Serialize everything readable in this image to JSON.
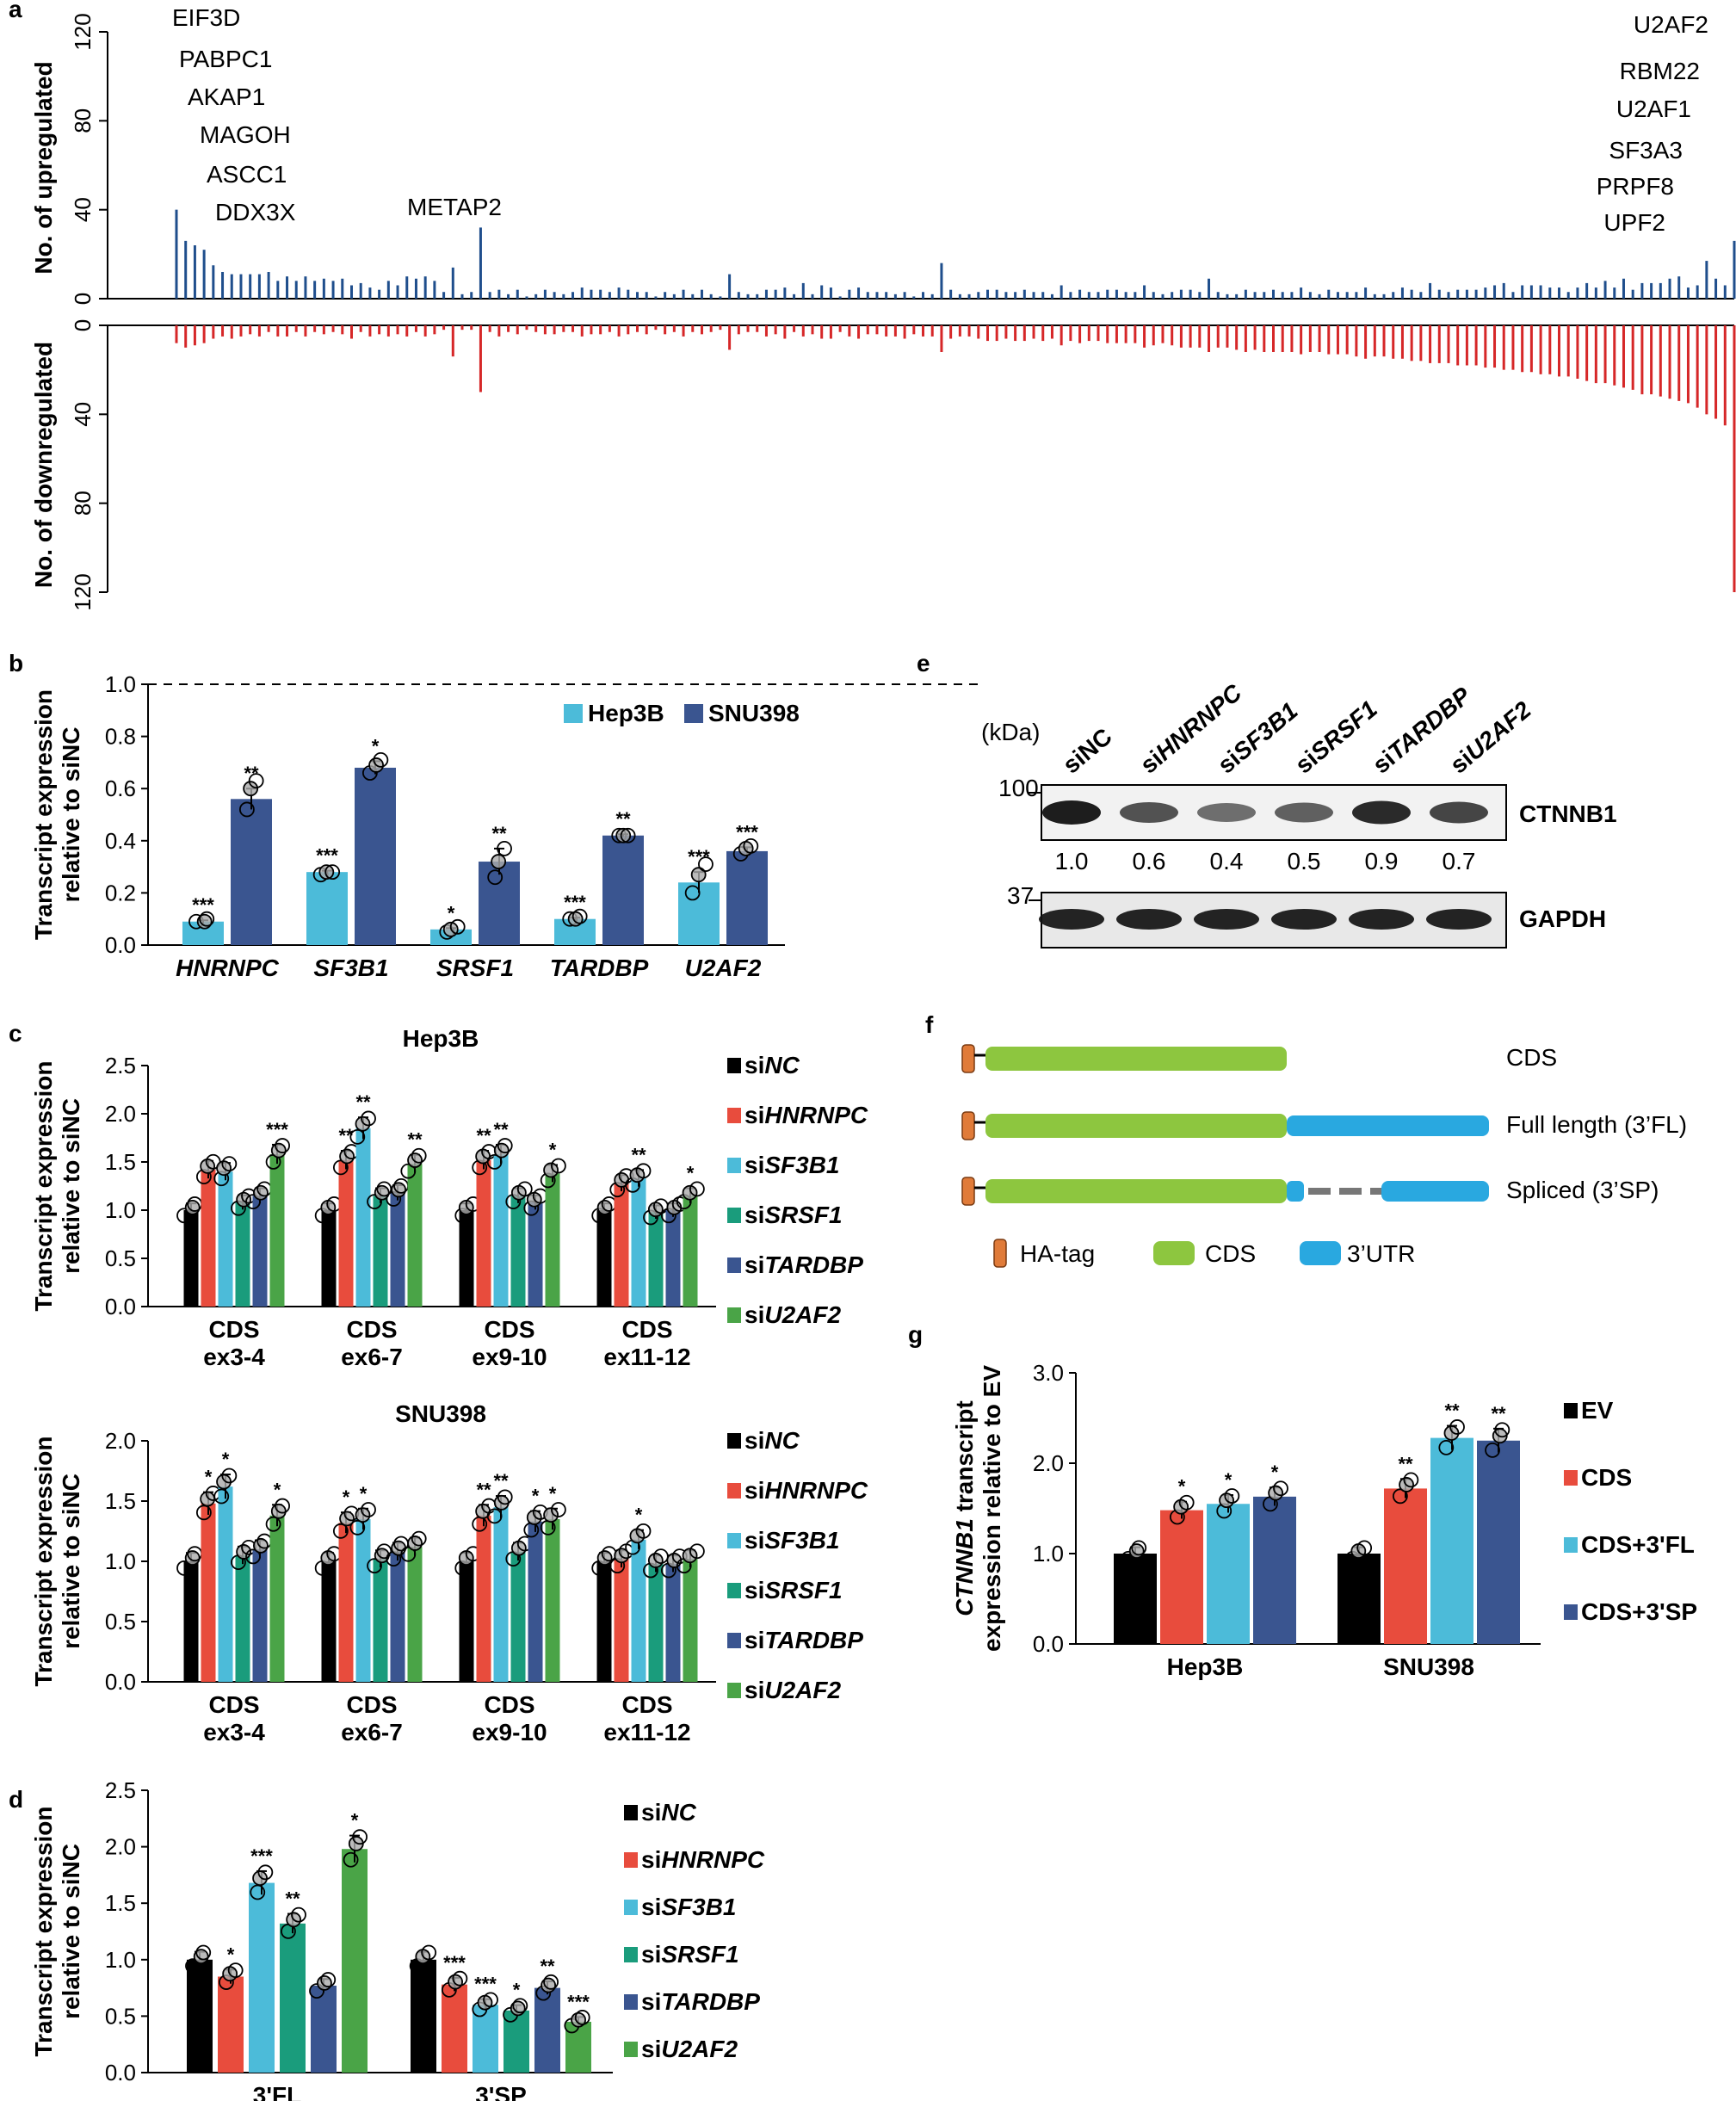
{
  "panel_letters": {
    "a": "a",
    "b": "b",
    "c": "c",
    "d": "d",
    "e": "e",
    "f": "f",
    "g": "g"
  },
  "colors": {
    "up": "#1f4e8c",
    "down": "#d62728",
    "Hep3B": "#4cbbd9",
    "SNU398": "#3a5590",
    "siNC": "#000000",
    "siHNRNPC": "#e84c3d",
    "siSF3B1": "#4cbbd9",
    "siSRSF1": "#1a9c7c",
    "siTARDBP": "#3a5590",
    "siU2AF2": "#4aa447",
    "EV": "#000000",
    "CDS": "#e84c3d",
    "CDS+3'FL": "#4cbbd9",
    "CDS+3'SP": "#3a5590",
    "HA": "#e07b39",
    "CDSbox": "#8dc63f",
    "UTR": "#29a8e0"
  },
  "chart_data": [
    {
      "id": "a",
      "type": "bar",
      "ylabel_up": "No. of upregulated",
      "ylabel_down": "No. of downregulated",
      "ylim": [
        0,
        120
      ],
      "yticks": [
        "0",
        "40",
        "80",
        "120"
      ],
      "n_bars": 170,
      "up_values": [
        40,
        26,
        24,
        22,
        15,
        12,
        11,
        11,
        11,
        11,
        12,
        8,
        10,
        8,
        10,
        8,
        9,
        8,
        9,
        6,
        7,
        5,
        4,
        8,
        6,
        10,
        9,
        10,
        8,
        3,
        14,
        2,
        3,
        32,
        3,
        4,
        2,
        4,
        1,
        2,
        4,
        3,
        2,
        3,
        5,
        4,
        4,
        3,
        5,
        4,
        3,
        3,
        1,
        3,
        2,
        4,
        2,
        4,
        2,
        1,
        11,
        3,
        2,
        2,
        4,
        4,
        5,
        2,
        7,
        2,
        6,
        5,
        1,
        4,
        5,
        3,
        3,
        3,
        2,
        3,
        1,
        3,
        2,
        16,
        4,
        2,
        2,
        3,
        4,
        4,
        3,
        3,
        4,
        3,
        3,
        2,
        6,
        3,
        4,
        3,
        3,
        4,
        4,
        3,
        3,
        6,
        3,
        2,
        3,
        4,
        4,
        3,
        9,
        3,
        2,
        2,
        4,
        3,
        3,
        4,
        3,
        3,
        5,
        3,
        2,
        4,
        3,
        3,
        3,
        5,
        2,
        2,
        3,
        5,
        4,
        3,
        7,
        4,
        3,
        4,
        4,
        4,
        5,
        6,
        7,
        3,
        6,
        6,
        6,
        5,
        5,
        3,
        5,
        7,
        5,
        8,
        5,
        9,
        4,
        7,
        7,
        7,
        9,
        10,
        5,
        6,
        17,
        9,
        6,
        26
      ],
      "down_values": [
        8,
        10,
        9,
        8,
        6,
        5,
        6,
        5,
        4,
        5,
        3,
        5,
        5,
        3,
        5,
        3,
        4,
        3,
        4,
        6,
        3,
        5,
        4,
        5,
        4,
        5,
        3,
        5,
        4,
        2,
        14,
        2,
        2,
        30,
        3,
        5,
        3,
        4,
        2,
        3,
        4,
        4,
        3,
        3,
        5,
        4,
        4,
        3,
        5,
        4,
        3,
        4,
        2,
        4,
        3,
        5,
        3,
        4,
        3,
        2,
        11,
        4,
        3,
        3,
        5,
        4,
        6,
        3,
        5,
        4,
        6,
        6,
        3,
        5,
        6,
        4,
        4,
        5,
        5,
        6,
        4,
        5,
        5,
        12,
        6,
        5,
        5,
        6,
        7,
        7,
        6,
        7,
        7,
        6,
        7,
        6,
        9,
        7,
        8,
        7,
        7,
        8,
        8,
        8,
        8,
        10,
        9,
        8,
        9,
        10,
        10,
        10,
        12,
        10,
        10,
        11,
        12,
        11,
        12,
        12,
        12,
        12,
        13,
        12,
        12,
        13,
        13,
        13,
        14,
        15,
        14,
        14,
        15,
        15,
        16,
        16,
        17,
        17,
        17,
        18,
        18,
        18,
        19,
        19,
        20,
        20,
        21,
        21,
        22,
        22,
        23,
        23,
        24,
        25,
        26,
        26,
        27,
        28,
        29,
        31,
        31,
        32,
        33,
        34,
        35,
        37,
        40,
        42,
        45,
        120
      ],
      "labels_left": [
        "EIF3D",
        "PABPC1",
        "AKAP1",
        "MAGOH",
        "ASCC1",
        "DDX3X"
      ],
      "label_mid": "METAP2",
      "labels_right": [
        "U2AF2",
        "RBM22",
        "U2AF1",
        "SF3A3",
        "PRPF8",
        "UPF2"
      ]
    },
    {
      "id": "b",
      "type": "bar",
      "ylabel": [
        "Transcript expression",
        "relative to siNC"
      ],
      "ylim": [
        0,
        1.0
      ],
      "yticks": [
        "0.0",
        "0.2",
        "0.4",
        "0.6",
        "0.8",
        "1.0"
      ],
      "categories": [
        "HNRNPC",
        "SF3B1",
        "SRSF1",
        "TARDBP",
        "U2AF2"
      ],
      "series": [
        {
          "name": "Hep3B",
          "values": [
            0.09,
            0.28,
            0.06,
            0.1,
            0.24
          ],
          "err": [
            0.005,
            0.005,
            0.005,
            0.005,
            0.04
          ],
          "sig": [
            "***",
            "***",
            "*",
            "***",
            "***"
          ],
          "pts": [
            [
              0.09,
              0.09,
              0.1
            ],
            [
              0.27,
              0.28,
              0.28
            ],
            [
              0.05,
              0.06,
              0.07
            ],
            [
              0.1,
              0.1,
              0.11
            ],
            [
              0.2,
              0.27,
              0.31
            ]
          ]
        },
        {
          "name": "SNU398",
          "values": [
            0.56,
            0.68,
            0.32,
            0.42,
            0.36
          ],
          "err": [
            0.04,
            0.025,
            0.05,
            0.005,
            0.015
          ],
          "sig": [
            "**",
            "*",
            "**",
            "**",
            "***"
          ],
          "pts": [
            [
              0.52,
              0.6,
              0.63
            ],
            [
              0.66,
              0.69,
              0.71
            ],
            [
              0.26,
              0.32,
              0.37
            ],
            [
              0.42,
              0.42,
              0.42
            ],
            [
              0.35,
              0.37,
              0.38
            ]
          ]
        }
      ]
    },
    {
      "id": "c1",
      "type": "bar",
      "title": "Hep3B",
      "ylabel": [
        "Transcript expression",
        "relative to siNC"
      ],
      "ylim": [
        0,
        2.5
      ],
      "yticks": [
        "0.0",
        "0.5",
        "1.0",
        "1.5",
        "2.0",
        "2.5"
      ],
      "categories": [
        [
          "CDS",
          "ex3-4"
        ],
        [
          "CDS",
          "ex6-7"
        ],
        [
          "CDS",
          "ex9-10"
        ],
        [
          "CDS",
          "ex11-12"
        ]
      ],
      "series": [
        {
          "name": "siNC",
          "values": [
            1.0,
            1.0,
            1.0,
            1.0
          ],
          "sig": [
            "",
            "",
            "",
            ""
          ]
        },
        {
          "name": "siHNRNPC",
          "values": [
            1.42,
            1.52,
            1.52,
            1.28
          ],
          "sig": [
            "",
            "**",
            "**",
            ""
          ]
        },
        {
          "name": "siSF3B1",
          "values": [
            1.4,
            1.85,
            1.58,
            1.33
          ],
          "sig": [
            "",
            "**",
            "**",
            "**"
          ]
        },
        {
          "name": "siSRSF1",
          "values": [
            1.08,
            1.15,
            1.15,
            0.98
          ],
          "sig": [
            "",
            "",
            "",
            ""
          ]
        },
        {
          "name": "siTARDBP",
          "values": [
            1.15,
            1.18,
            1.08,
            1.0
          ],
          "sig": [
            "",
            "",
            "",
            ""
          ]
        },
        {
          "name": "siU2AF2",
          "values": [
            1.58,
            1.48,
            1.38,
            1.15
          ],
          "sig": [
            "***",
            "**",
            "*",
            "*"
          ]
        }
      ]
    },
    {
      "id": "c2",
      "type": "bar",
      "title": "SNU398",
      "ylabel": [
        "Transcript expression",
        "relative to siNC"
      ],
      "ylim": [
        0,
        2.0
      ],
      "yticks": [
        "0.0",
        "0.5",
        "1.0",
        "1.5",
        "2.0"
      ],
      "categories": [
        [
          "CDS",
          "ex3-4"
        ],
        [
          "CDS",
          "ex6-7"
        ],
        [
          "CDS",
          "ex9-10"
        ],
        [
          "CDS",
          "ex11-12"
        ]
      ],
      "series": [
        {
          "name": "siNC",
          "values": [
            1.0,
            1.0,
            1.0,
            1.0
          ],
          "sig": [
            "",
            "",
            "",
            ""
          ]
        },
        {
          "name": "siHNRNPC",
          "values": [
            1.48,
            1.32,
            1.38,
            1.02
          ],
          "sig": [
            "*",
            "*",
            "**",
            ""
          ]
        },
        {
          "name": "siSF3B1",
          "values": [
            1.62,
            1.35,
            1.45,
            1.18
          ],
          "sig": [
            "*",
            "*",
            "**",
            "*"
          ]
        },
        {
          "name": "siSRSF1",
          "values": [
            1.05,
            1.02,
            1.08,
            0.98
          ],
          "sig": [
            "",
            "",
            "",
            ""
          ]
        },
        {
          "name": "siTARDBP",
          "values": [
            1.1,
            1.08,
            1.33,
            0.98
          ],
          "sig": [
            "",
            "",
            "*",
            ""
          ]
        },
        {
          "name": "siU2AF2",
          "values": [
            1.38,
            1.12,
            1.35,
            1.02
          ],
          "sig": [
            "*",
            "",
            "*",
            ""
          ]
        }
      ]
    },
    {
      "id": "d",
      "type": "bar",
      "ylabel": [
        "Transcript expression",
        "relative to siNC"
      ],
      "ylim": [
        0,
        2.5
      ],
      "yticks": [
        "0.0",
        "0.5",
        "1.0",
        "1.5",
        "2.0",
        "2.5"
      ],
      "categories": [
        [
          "3'FL"
        ],
        [
          "3'SP"
        ]
      ],
      "series": [
        {
          "name": "siNC",
          "values": [
            1.0,
            1.0
          ],
          "sig": [
            "",
            ""
          ]
        },
        {
          "name": "siHNRNPC",
          "values": [
            0.85,
            0.78
          ],
          "sig": [
            "*",
            "***"
          ]
        },
        {
          "name": "siSF3B1",
          "values": [
            1.68,
            0.6
          ],
          "sig": [
            "***",
            "***"
          ]
        },
        {
          "name": "siSRSF1",
          "values": [
            1.32,
            0.55
          ],
          "sig": [
            "**",
            "*"
          ]
        },
        {
          "name": "siTARDBP",
          "values": [
            0.77,
            0.75
          ],
          "sig": [
            "",
            "**"
          ]
        },
        {
          "name": "siU2AF2",
          "values": [
            1.98,
            0.45
          ],
          "sig": [
            "*",
            "***"
          ]
        }
      ]
    },
    {
      "id": "g",
      "type": "bar",
      "ylabel": [
        "CTNNB1 transcript",
        "expression relative to EV"
      ],
      "ylim": [
        0,
        3.0
      ],
      "yticks": [
        "0.0",
        "1.0",
        "2.0",
        "3.0"
      ],
      "categories": [
        [
          "Hep3B"
        ],
        [
          "SNU398"
        ]
      ],
      "series": [
        {
          "name": "EV",
          "values": [
            1.0,
            1.0
          ],
          "sig": [
            "",
            ""
          ]
        },
        {
          "name": "CDS",
          "values": [
            1.48,
            1.72
          ],
          "sig": [
            "*",
            "**"
          ]
        },
        {
          "name": "CDS+3'FL",
          "values": [
            1.55,
            2.28
          ],
          "sig": [
            "*",
            "**"
          ]
        },
        {
          "name": "CDS+3'SP",
          "values": [
            1.63,
            2.25
          ],
          "sig": [
            "*",
            "**"
          ]
        }
      ]
    }
  ],
  "legend_si": [
    {
      "pre": "si",
      "it": "NC",
      "key": "siNC"
    },
    {
      "pre": "si",
      "it": "HNRNPC",
      "key": "siHNRNPC"
    },
    {
      "pre": "si",
      "it": "SF3B1",
      "key": "siSF3B1"
    },
    {
      "pre": "si",
      "it": "SRSF1",
      "key": "siSRSF1"
    },
    {
      "pre": "si",
      "it": "TARDBP",
      "key": "siTARDBP"
    },
    {
      "pre": "si",
      "it": "U2AF2",
      "key": "siU2AF2"
    }
  ],
  "legend_b": [
    "Hep3B",
    "SNU398"
  ],
  "legend_g": [
    "EV",
    "CDS",
    "CDS+3'FL",
    "CDS+3'SP"
  ],
  "blot": {
    "kda": "(kDa)",
    "lanes": [
      "siNC",
      "siHNRNPC",
      "siSF3B1",
      "siSRSF1",
      "siTARDBP",
      "siU2AF2"
    ],
    "marker_top": "100",
    "marker_bottom": "37",
    "protein_top": "CTNNB1",
    "protein_bottom": "GAPDH",
    "quant": [
      "1.0",
      "0.6",
      "0.4",
      "0.5",
      "0.9",
      "0.7"
    ]
  },
  "constructs": {
    "rows": [
      "CDS",
      "Full length (3’FL)",
      "Spliced (3’SP)"
    ],
    "legend": [
      "HA-tag",
      "CDS",
      "3’UTR"
    ]
  }
}
